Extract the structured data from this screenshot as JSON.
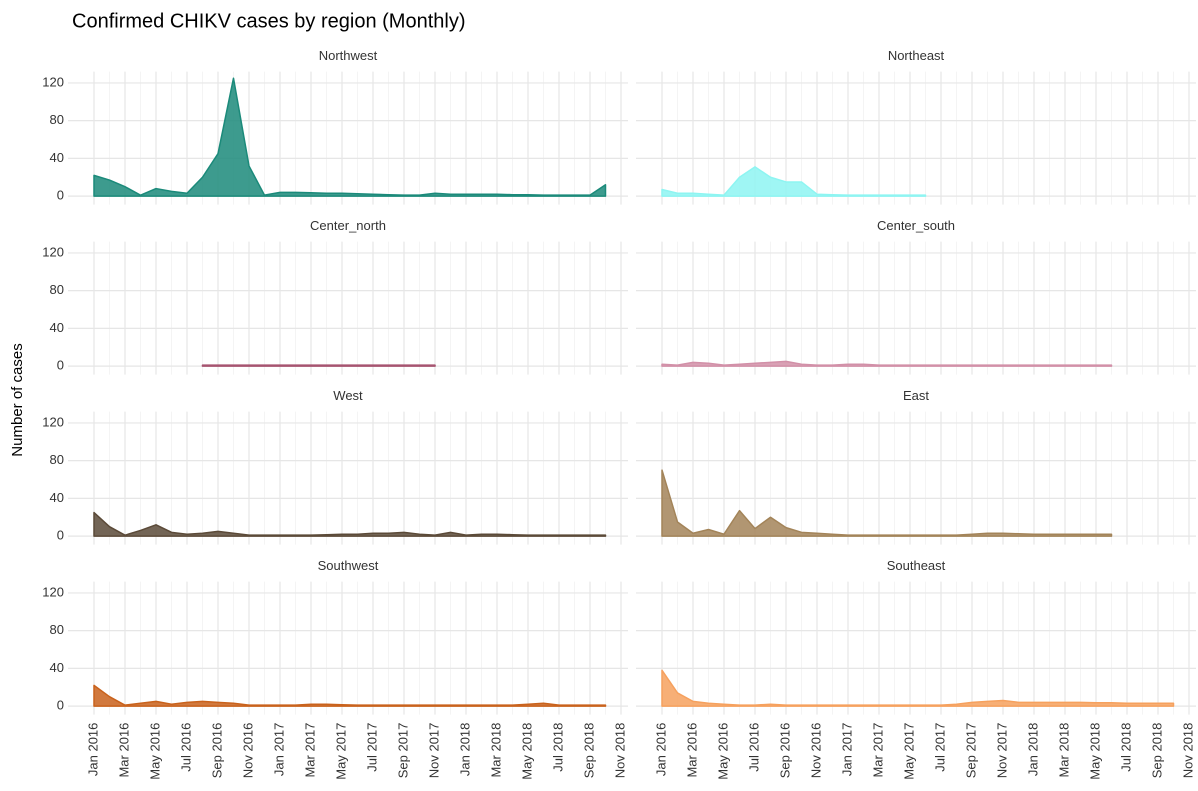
{
  "chart_data": {
    "type": "area",
    "title": "Confirmed CHIKV cases by region (Monthly)",
    "y_label": "Number of cases",
    "categories": [
      "Jan 2016",
      null,
      "Mar 2016",
      null,
      "May 2016",
      null,
      "Jul 2016",
      null,
      "Sep 2016",
      null,
      "Nov 2016",
      null,
      "Jan 2017",
      null,
      "Mar 2017",
      null,
      "May 2017",
      null,
      "Jul 2017",
      null,
      "Sep 2017",
      null,
      "Nov 2017",
      null,
      "Jan 2018",
      null,
      "Mar 2018",
      null,
      "May 2018",
      null,
      "Jul 2018",
      null,
      "Sep 2018",
      null,
      "Nov 2018"
    ],
    "ylim": [
      -9,
      132
    ],
    "yticks": [
      0,
      40,
      80,
      120
    ],
    "grid": true,
    "series": [
      {
        "name": "Northwest",
        "color": "#1b8a7a",
        "values": [
          22,
          17,
          10,
          1,
          8,
          5,
          3,
          20,
          45,
          125,
          32,
          1,
          4,
          4,
          3.5,
          3,
          3,
          2.5,
          2,
          1.5,
          1,
          1,
          3,
          2,
          2,
          2,
          2,
          1.5,
          1.5,
          1,
          1,
          1,
          1,
          12,
          null
        ]
      },
      {
        "name": "Northeast",
        "color": "#8ef5f2",
        "values": [
          7,
          3,
          3,
          2,
          1,
          20,
          31,
          20,
          15,
          15,
          2,
          1.5,
          1,
          1,
          1,
          1,
          1,
          1,
          null,
          null,
          null,
          null,
          null,
          null,
          null,
          null,
          null,
          null,
          null,
          null,
          null,
          null,
          null,
          null,
          null
        ]
      },
      {
        "name": "Center_north",
        "color": "#a65470",
        "values": [
          null,
          null,
          null,
          null,
          null,
          null,
          null,
          1,
          1,
          1,
          1,
          1,
          1,
          1,
          1,
          1,
          1,
          1,
          1,
          1,
          1,
          1,
          1,
          null,
          null,
          null,
          null,
          null,
          null,
          null,
          null,
          null,
          null,
          null,
          null
        ]
      },
      {
        "name": "Center_south",
        "color": "#d290a8",
        "values": [
          2,
          1,
          4,
          3,
          1,
          2,
          3,
          4,
          5,
          2,
          1,
          1,
          2,
          2,
          1,
          1,
          1,
          1,
          1,
          1,
          1,
          1,
          1,
          1,
          1,
          1,
          1,
          1,
          1,
          1,
          null,
          null,
          null,
          null,
          null
        ]
      },
      {
        "name": "West",
        "color": "#5b4a38",
        "values": [
          25,
          10,
          1,
          6,
          12,
          4,
          2,
          3,
          5,
          3,
          1,
          1,
          1,
          1,
          1,
          1.5,
          2,
          2,
          3,
          3,
          4,
          2,
          1,
          4,
          1,
          2,
          2,
          1.5,
          1,
          1,
          1,
          1,
          1,
          1,
          null
        ]
      },
      {
        "name": "East",
        "color": "#a38459",
        "values": [
          70,
          15,
          3,
          7,
          2,
          27,
          8,
          20,
          9,
          4,
          3,
          2,
          1,
          1,
          1,
          1,
          1,
          1,
          1,
          1,
          2,
          3,
          3,
          2.5,
          2,
          2,
          2,
          2,
          2,
          2,
          null,
          null,
          null,
          null,
          null
        ]
      },
      {
        "name": "Southwest",
        "color": "#c9621c",
        "values": [
          22,
          10,
          1,
          3,
          5,
          2,
          4,
          5,
          4,
          3,
          1,
          1,
          1,
          1,
          2,
          2,
          1.5,
          1,
          1,
          1,
          1,
          1,
          1,
          1,
          1,
          1,
          1,
          1,
          2,
          3,
          1,
          1,
          1,
          1,
          null
        ]
      },
      {
        "name": "Southeast",
        "color": "#f6a15e",
        "values": [
          38,
          14,
          5,
          3,
          2,
          1,
          1,
          2,
          1,
          1,
          1,
          1,
          1,
          1,
          1,
          1,
          1,
          1,
          1,
          2,
          4,
          5,
          6,
          4,
          4,
          4,
          4,
          4,
          3.5,
          3.5,
          3,
          3,
          3,
          3,
          null
        ]
      }
    ]
  }
}
